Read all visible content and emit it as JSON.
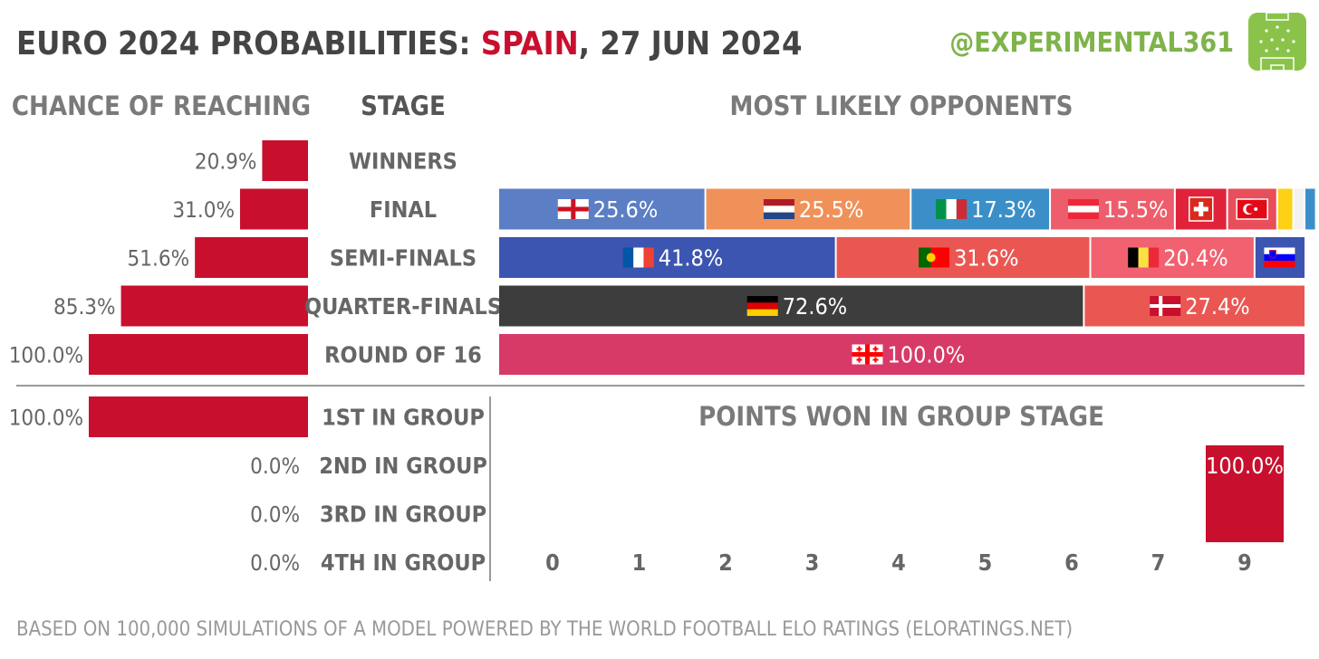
{
  "title": {
    "prefix": "EURO 2024 PROBABILITIES: ",
    "team": "SPAIN",
    "suffix": ", 27 JUN 2024",
    "team_color": "#c8102e"
  },
  "handle": "@EXPERIMENTAL361",
  "logo_icon": "football-pitch-icon",
  "headers": {
    "chance": "CHANCE OF REACHING",
    "stage": "STAGE",
    "opponents": "MOST LIKELY OPPONENTS",
    "points": "POINTS WON IN GROUP STAGE"
  },
  "footer": "BASED ON 100,000 SIMULATIONS OF A MODEL POWERED BY THE WORLD FOOTBALL ELO RATINGS  (ELORATINGS.NET)",
  "colors": {
    "bar": "#c8102e",
    "text": "#666666"
  },
  "chart_data": [
    {
      "type": "bar",
      "orientation": "horizontal",
      "categories": [
        "WINNERS",
        "FINAL",
        "SEMI-FINALS",
        "QUARTER-FINALS",
        "ROUND OF 16"
      ],
      "values": [
        20.9,
        31.0,
        51.6,
        85.3,
        100.0
      ],
      "labels": [
        "20.9%",
        "31.0%",
        "51.6%",
        "85.3%",
        "100.0%"
      ],
      "xlim": [
        0,
        100
      ]
    },
    {
      "type": "bar",
      "orientation": "horizontal",
      "categories": [
        "1ST IN GROUP",
        "2ND IN GROUP",
        "3RD IN GROUP",
        "4TH IN GROUP"
      ],
      "values": [
        100.0,
        0.0,
        0.0,
        0.0
      ],
      "labels": [
        "100.0%",
        "0.0%",
        "0.0%",
        "0.0%"
      ],
      "xlim": [
        0,
        100
      ]
    },
    {
      "type": "bar",
      "stacked": true,
      "orientation": "horizontal",
      "rows": [
        {
          "stage": "WINNERS",
          "segments": []
        },
        {
          "stage": "FINAL",
          "segments": [
            {
              "team": "England",
              "flag": "england-flag",
              "value": 25.6,
              "label": "25.6%",
              "color": "#5b7ec4"
            },
            {
              "team": "Netherlands",
              "flag": "netherlands-flag",
              "value": 25.5,
              "label": "25.5%",
              "color": "#f0915a"
            },
            {
              "team": "Italy",
              "flag": "italy-flag",
              "value": 17.3,
              "label": "17.3%",
              "color": "#3b8fc8"
            },
            {
              "team": "Austria",
              "flag": "austria-flag",
              "value": 15.5,
              "label": "15.5%",
              "color": "#ee5d6c"
            },
            {
              "team": "Switzerland",
              "flag": "switzerland-flag",
              "value": 6.5,
              "label": "",
              "color": "#e0233a"
            },
            {
              "team": "Turkey",
              "flag": "turkey-flag",
              "value": 6.2,
              "label": "",
              "color": "#e84f5b"
            },
            {
              "team": "Romania",
              "flag": "",
              "value": 2.0,
              "label": "",
              "color": "#fcd116"
            },
            {
              "team": "Other",
              "flag": "",
              "value": 1.4,
              "label": "",
              "color": "#f2f2f2"
            },
            {
              "team": "Ukraine",
              "flag": "",
              "value": 1.3,
              "label": "",
              "color": "#3b8fc8"
            }
          ]
        },
        {
          "stage": "SEMI-FINALS",
          "segments": [
            {
              "team": "France",
              "flag": "france-flag",
              "value": 41.8,
              "label": "41.8%",
              "color": "#3c55b0"
            },
            {
              "team": "Portugal",
              "flag": "portugal-flag",
              "value": 31.6,
              "label": "31.6%",
              "color": "#ea5752"
            },
            {
              "team": "Belgium",
              "flag": "belgium-flag",
              "value": 20.4,
              "label": "20.4%",
              "color": "#f2616f"
            },
            {
              "team": "Slovenia",
              "flag": "slovenia-flag",
              "value": 6.2,
              "label": "",
              "color": "#3c55b0"
            }
          ]
        },
        {
          "stage": "QUARTER-FINALS",
          "segments": [
            {
              "team": "Germany",
              "flag": "germany-flag",
              "value": 72.6,
              "label": "72.6%",
              "color": "#3d3d3d"
            },
            {
              "team": "Denmark",
              "flag": "denmark-flag",
              "value": 27.4,
              "label": "27.4%",
              "color": "#ea5752"
            }
          ]
        },
        {
          "stage": "ROUND OF 16",
          "segments": [
            {
              "team": "Georgia",
              "flag": "georgia-flag",
              "value": 100.0,
              "label": "100.0%",
              "color": "#d83a68"
            }
          ]
        }
      ],
      "xlim": [
        0,
        100
      ]
    },
    {
      "type": "bar",
      "categories": [
        "0",
        "1",
        "2",
        "3",
        "4",
        "5",
        "6",
        "7",
        "9"
      ],
      "values": [
        0,
        0,
        0,
        0,
        0,
        0,
        0,
        0,
        100.0
      ],
      "labels": [
        "",
        "",
        "",
        "",
        "",
        "",
        "",
        "",
        "100.0%"
      ],
      "ylim": [
        0,
        100
      ]
    }
  ]
}
